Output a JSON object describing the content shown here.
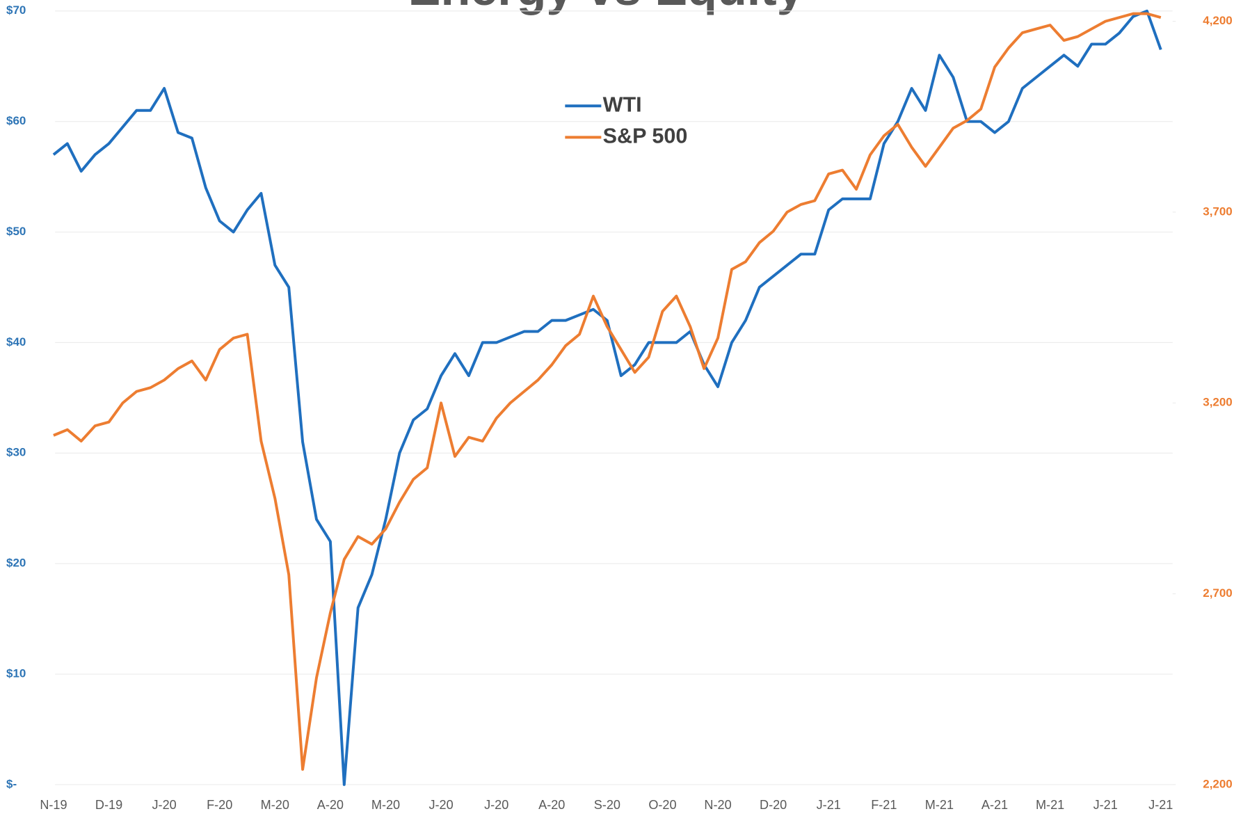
{
  "chart_data": {
    "type": "line",
    "title": "Energy vs Equity",
    "categories": [
      "N-19",
      null,
      null,
      null,
      "D-19",
      null,
      null,
      null,
      "J-20",
      null,
      null,
      null,
      "F-20",
      null,
      null,
      null,
      "M-20",
      null,
      null,
      null,
      "A-20",
      null,
      null,
      null,
      "M-20",
      null,
      null,
      null,
      "J-20",
      null,
      null,
      null,
      "J-20",
      null,
      null,
      null,
      "A-20",
      null,
      null,
      null,
      "S-20",
      null,
      null,
      null,
      "O-20",
      null,
      null,
      null,
      "N-20",
      null,
      null,
      null,
      "D-20",
      null,
      null,
      null,
      "J-21",
      null,
      null,
      null,
      "F-21",
      null,
      null,
      null,
      "M-21",
      null,
      null,
      null,
      "A-21",
      null,
      null,
      null,
      "M-21",
      null,
      null,
      null,
      "J-21",
      null,
      null,
      null,
      "J-21"
    ],
    "series": [
      {
        "name": "WTI",
        "color": "#1f6fbf",
        "axis": "y",
        "values": [
          57,
          58,
          55.5,
          57,
          58,
          59.5,
          61,
          61,
          63,
          59,
          58.5,
          54,
          51,
          50,
          52,
          53.5,
          47,
          45,
          31,
          24,
          22,
          0,
          16,
          19,
          24,
          30,
          33,
          34,
          37,
          39,
          37,
          40,
          40,
          40.5,
          41,
          41,
          42,
          42,
          42.5,
          43,
          42,
          37,
          38,
          40,
          40,
          40,
          41,
          38,
          36,
          40,
          42,
          45,
          46,
          47,
          48,
          48,
          52,
          53,
          53,
          53,
          58,
          60,
          63,
          61,
          66,
          64,
          60,
          60,
          59,
          60,
          63,
          64,
          65,
          66,
          65,
          67,
          67,
          68,
          69.5,
          70,
          66.5
        ]
      },
      {
        "name": "S&P 500",
        "color": "#ed7d31",
        "axis": "y2",
        "values": [
          3115,
          3130,
          3100,
          3140,
          3150,
          3200,
          3230,
          3240,
          3260,
          3290,
          3310,
          3260,
          3340,
          3370,
          3380,
          3100,
          2950,
          2750,
          2240,
          2480,
          2650,
          2790,
          2850,
          2830,
          2870,
          2940,
          3000,
          3030,
          3200,
          3060,
          3110,
          3100,
          3160,
          3200,
          3230,
          3260,
          3300,
          3350,
          3380,
          3480,
          3400,
          3340,
          3280,
          3320,
          3440,
          3480,
          3400,
          3290,
          3370,
          3550,
          3570,
          3620,
          3650,
          3700,
          3720,
          3730,
          3800,
          3810,
          3760,
          3850,
          3900,
          3930,
          3870,
          3820,
          3870,
          3920,
          3940,
          3970,
          4080,
          4130,
          4170,
          4180,
          4190,
          4150,
          4160,
          4180,
          4200,
          4210,
          4220,
          4220,
          4210
        ]
      }
    ],
    "ylim": [
      0,
      70
    ],
    "yticks": [
      {
        "value": 0,
        "label": "$-"
      },
      {
        "value": 10,
        "label": "$10"
      },
      {
        "value": 20,
        "label": "$20"
      },
      {
        "value": 30,
        "label": "$30"
      },
      {
        "value": 40,
        "label": "$40"
      },
      {
        "value": 50,
        "label": "$50"
      },
      {
        "value": 60,
        "label": "$60"
      },
      {
        "value": 70,
        "label": "$70"
      }
    ],
    "y2lim": [
      2200,
      4227
    ],
    "y2ticks": [
      {
        "value": 2200,
        "label": "2,200"
      },
      {
        "value": 2700,
        "label": "2,700"
      },
      {
        "value": 3200,
        "label": "3,200"
      },
      {
        "value": 3700,
        "label": "3,700"
      },
      {
        "value": 4200,
        "label": "4,200"
      }
    ],
    "grid": true
  }
}
